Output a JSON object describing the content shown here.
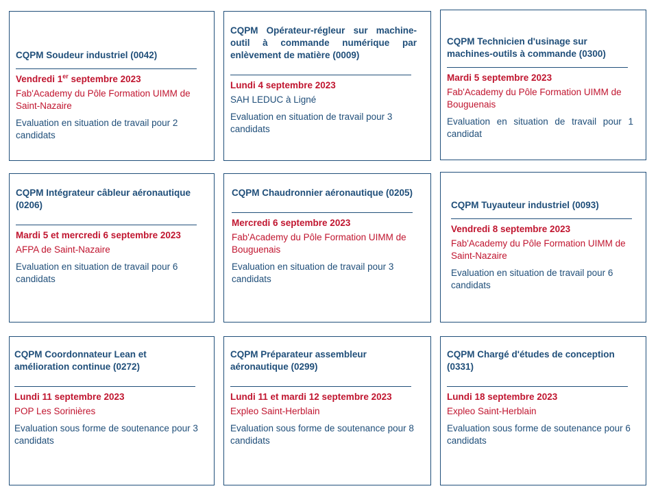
{
  "cards": [
    {
      "title": "CQPM Soudeur industriel (0042)",
      "date_main": "Vendredi 1",
      "date_sup": "er",
      "date_rest": " septembre 2023",
      "location": "Fab'Academy du Pôle Formation UIMM de Saint-Nazaire",
      "evaluation": "Evaluation en situation de travail pour 2 candidats"
    },
    {
      "title": "CQPM Opérateur-régleur sur machine-outil à commande numérique par enlèvement de matière (0009)",
      "date": "Lundi 4 septembre 2023",
      "location": "SAH LEDUC à Ligné",
      "evaluation": "Evaluation en situation de travail pour 3 candidats"
    },
    {
      "title": "CQPM Technicien d'usinage sur machines-outils à commande (0300)",
      "date": "Mardi 5 septembre 2023",
      "location": "Fab'Academy du Pôle Formation UIMM de Bouguenais",
      "evaluation": "Evaluation en situation de travail pour 1 candidat"
    },
    {
      "title": "CQPM Intégrateur câbleur aéronautique (0206)",
      "date": "Mardi 5 et mercredi 6 septembre 2023",
      "location": "AFPA de Saint-Nazaire",
      "evaluation": "Evaluation en situation de travail pour 6 candidats"
    },
    {
      "title": "CQPM Chaudronnier aéronautique (0205)",
      "date": "Mercredi 6 septembre 2023",
      "location": "Fab'Academy du Pôle Formation UIMM de Bouguenais",
      "evaluation": "Evaluation en situation de travail pour 3 candidats"
    },
    {
      "title": "CQPM Tuyauteur industriel (0093)",
      "date": "Vendredi 8 septembre 2023",
      "location": "Fab'Academy du Pôle Formation UIMM de Saint-Nazaire",
      "evaluation": "Evaluation en situation de travail pour 6 candidats"
    },
    {
      "title": "CQPM Coordonnateur Lean et amélioration continue (0272)",
      "date": "Lundi 11 septembre 2023",
      "location": "POP Les Sorinières",
      "evaluation": "Evaluation sous forme de soutenance pour 3 candidats"
    },
    {
      "title": "CQPM Préparateur assembleur aéronautique (0299)",
      "date": "Lundi 11 et mardi 12 septembre 2023",
      "location": "Expleo Saint-Herblain",
      "evaluation": "Evaluation sous forme de soutenance pour 8 candidats"
    },
    {
      "title": "CQPM Chargé d'études de conception (0331)",
      "date": "Lundi 18 septembre 2023",
      "location": "Expleo Saint-Herblain",
      "evaluation": "Evaluation sous forme de soutenance pour 6 candidats"
    }
  ],
  "colors": {
    "navy": "#1f4e79",
    "red": "#c0152f"
  }
}
